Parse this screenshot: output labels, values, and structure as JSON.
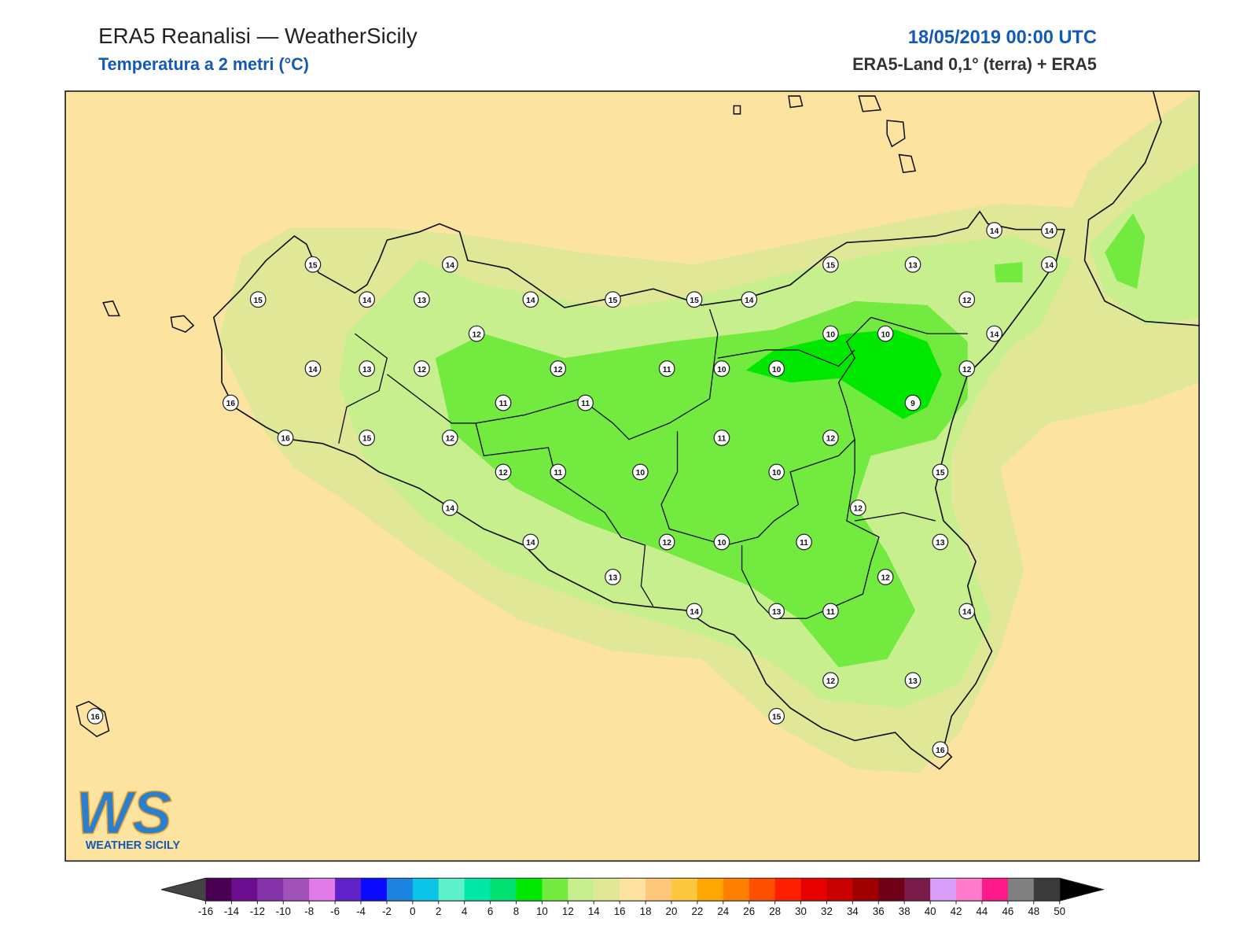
{
  "header": {
    "title": "ERA5 Reanalisi — WeatherSicily",
    "subtitle": "Temperatura a 2 metri (°C)",
    "date": "18/05/2019 00:00 UTC",
    "source": "ERA5-Land 0,1° (terra) + ERA5"
  },
  "stations": [
    15,
    14,
    15,
    14,
    13,
    14,
    15,
    15,
    14,
    15,
    13,
    14,
    14,
    14,
    12,
    12,
    10,
    10,
    14,
    14,
    13,
    12,
    12,
    11,
    10,
    10,
    12,
    16,
    11,
    11,
    9,
    16,
    15,
    12,
    11,
    12,
    12,
    11,
    10,
    10,
    15,
    14,
    12,
    14,
    12,
    10,
    11,
    13,
    13,
    12,
    14,
    13,
    11,
    14,
    12,
    13,
    16,
    15,
    16
  ],
  "colorbar": {
    "ticks": [
      -16,
      -14,
      -12,
      -10,
      -8,
      -6,
      -4,
      -2,
      0,
      2,
      4,
      6,
      8,
      10,
      12,
      14,
      16,
      18,
      20,
      22,
      24,
      26,
      28,
      30,
      32,
      34,
      36,
      38,
      40,
      42,
      44,
      46,
      48,
      50
    ],
    "colors": [
      "#4a0052",
      "#6a0e8f",
      "#8533a8",
      "#a052b8",
      "#e07ae8",
      "#6022c8",
      "#0a0aff",
      "#1a84e0",
      "#0cc4e8",
      "#5ef0c8",
      "#00e8a8",
      "#00e070",
      "#00e800",
      "#72ea3f",
      "#c8ef8e",
      "#e0e898",
      "#fee2a0",
      "#fdc77a",
      "#fdc840",
      "#ffa600",
      "#ff8000",
      "#ff5000",
      "#ff2000",
      "#e80000",
      "#c80000",
      "#a00000",
      "#700018",
      "#7a1a48",
      "#d89ef8",
      "#ff7ac8",
      "#ff1a8a",
      "#808080",
      "#3a3a3a"
    ]
  },
  "logo": {
    "mark": "WS",
    "caption": "WEATHER SICILY"
  }
}
